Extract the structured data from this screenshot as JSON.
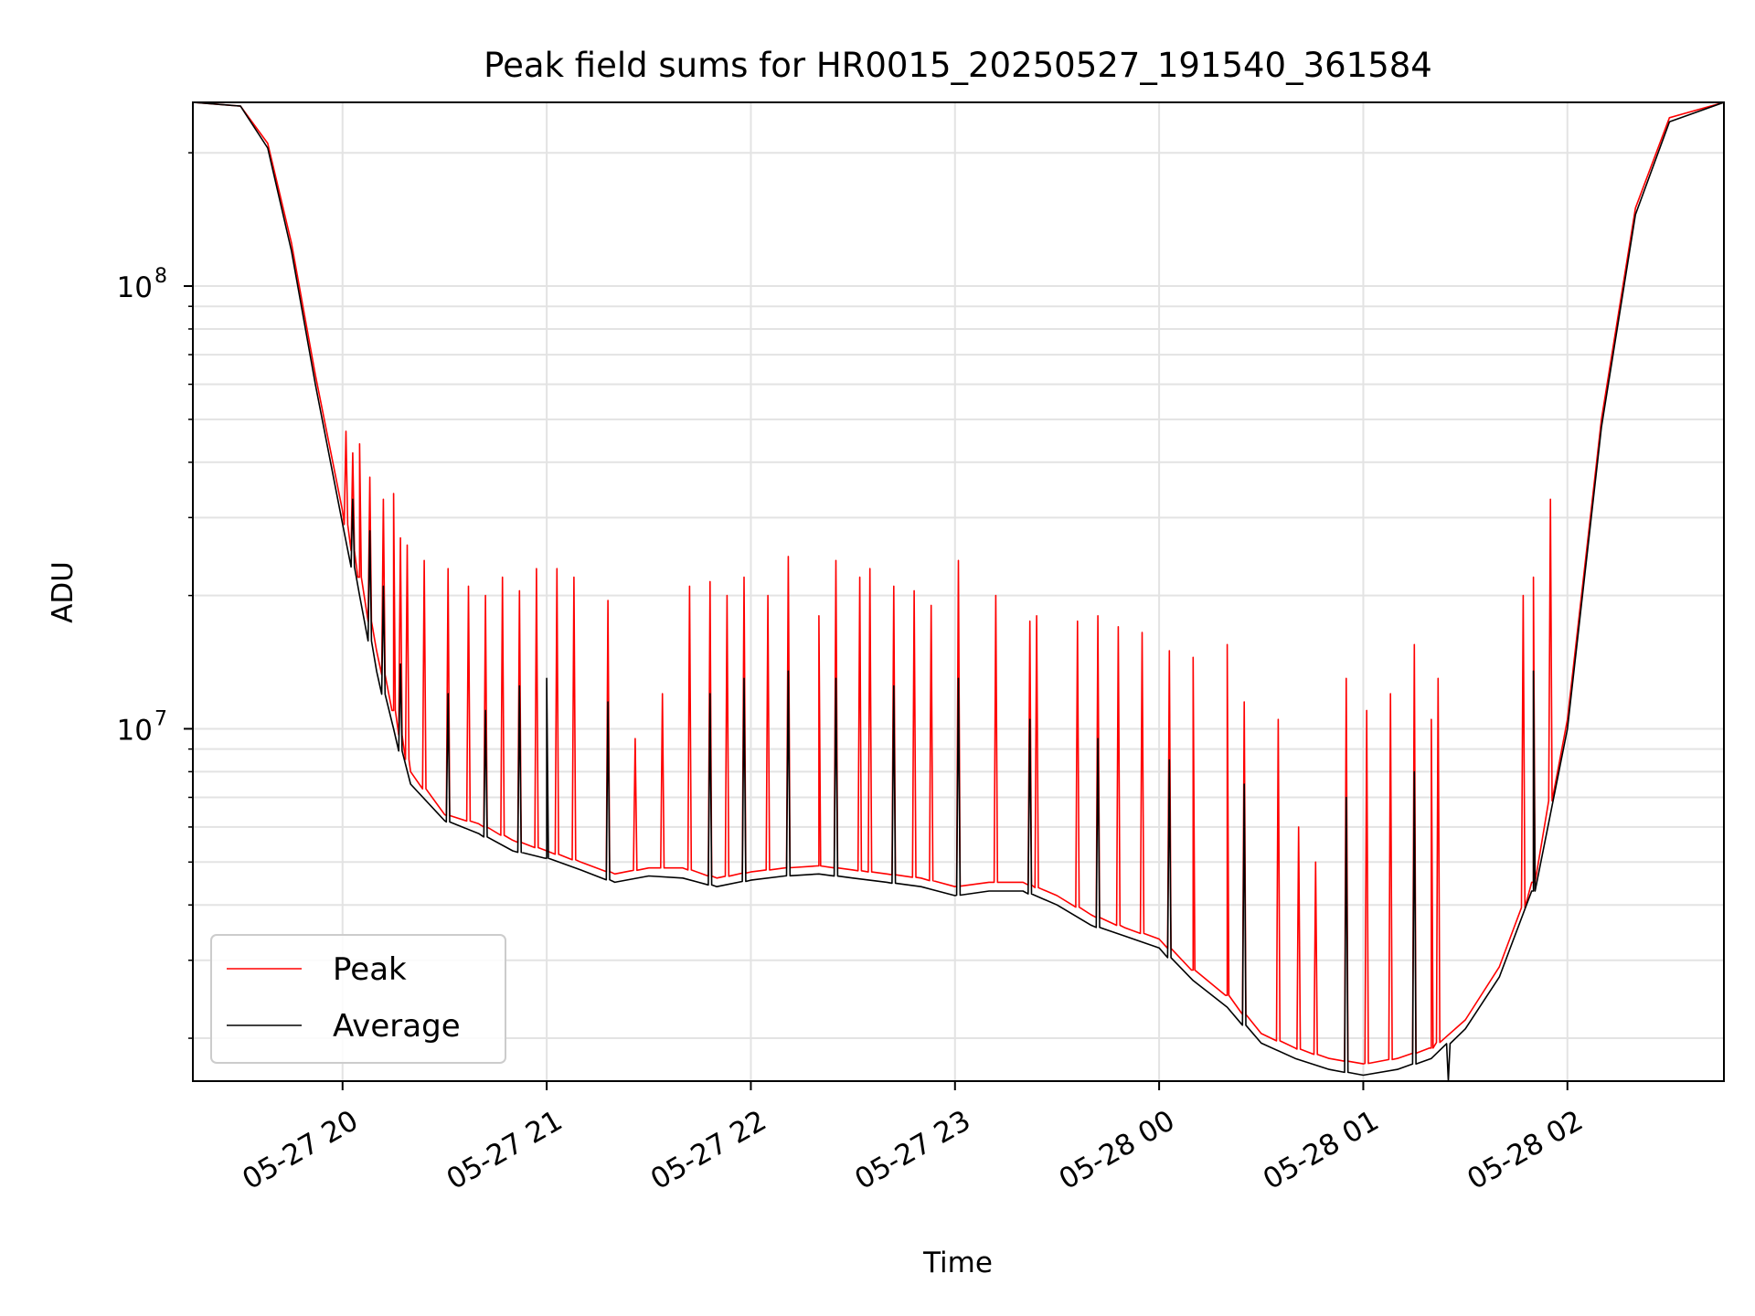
{
  "chart_data": {
    "type": "line",
    "title": "Peak field sums for HR0015_20250527_191540_361584",
    "xlabel": "Time",
    "ylabel": "ADU",
    "yscale": "log",
    "ylim": [
      1600000.0,
      260000000.0
    ],
    "xlim": [
      "2025-05-27 19:16",
      "2025-05-28 02:46"
    ],
    "grid": true,
    "legend_position": "lower-left",
    "x_ticks": [
      {
        "time": "2025-05-27 20:00",
        "label": "05-27 20"
      },
      {
        "time": "2025-05-27 21:00",
        "label": "05-27 21"
      },
      {
        "time": "2025-05-27 22:00",
        "label": "05-27 22"
      },
      {
        "time": "2025-05-27 23:00",
        "label": "05-27 23"
      },
      {
        "time": "2025-05-28 00:00",
        "label": "05-28 00"
      },
      {
        "time": "2025-05-28 01:00",
        "label": "05-28 01"
      },
      {
        "time": "2025-05-28 02:00",
        "label": "05-28 02"
      }
    ],
    "y_ticks": [
      {
        "value": 10000000.0,
        "label": "10",
        "exp": "7"
      },
      {
        "value": 100000000.0,
        "label": "10",
        "exp": "8"
      }
    ],
    "series": [
      {
        "name": "Peak",
        "color": "#ff0000",
        "x": [
          "2025-05-27 19:16",
          "2025-05-27 19:30",
          "2025-05-27 19:38",
          "2025-05-27 19:45",
          "2025-05-27 19:52",
          "2025-05-27 20:00",
          "2025-05-27 20:05",
          "2025-05-27 20:10",
          "2025-05-27 20:15",
          "2025-05-27 20:20",
          "2025-05-27 20:30",
          "2025-05-27 20:40",
          "2025-05-27 20:50",
          "2025-05-27 21:00",
          "2025-05-27 21:10",
          "2025-05-27 21:20",
          "2025-05-27 21:30",
          "2025-05-27 21:40",
          "2025-05-27 21:50",
          "2025-05-27 22:00",
          "2025-05-27 22:10",
          "2025-05-27 22:20",
          "2025-05-27 22:30",
          "2025-05-27 22:40",
          "2025-05-27 22:50",
          "2025-05-27 23:00",
          "2025-05-27 23:10",
          "2025-05-27 23:20",
          "2025-05-27 23:30",
          "2025-05-27 23:40",
          "2025-05-27 23:50",
          "2025-05-28 00:00",
          "2025-05-28 00:10",
          "2025-05-28 00:20",
          "2025-05-28 00:30",
          "2025-05-28 00:40",
          "2025-05-28 00:50",
          "2025-05-28 01:00",
          "2025-05-28 01:10",
          "2025-05-28 01:20",
          "2025-05-28 01:30",
          "2025-05-28 01:40",
          "2025-05-28 01:50",
          "2025-05-28 02:00",
          "2025-05-28 02:10",
          "2025-05-28 02:20",
          "2025-05-28 02:30",
          "2025-05-28 02:46"
        ],
        "y": [
          260000000.0,
          255000000.0,
          210000000.0,
          125000000.0,
          63000000.0,
          31000000.0,
          22000000.0,
          15000000.0,
          11000000.0,
          8000000.0,
          6400000.0,
          6100000.0,
          5600000.0,
          5300000.0,
          5000000.0,
          4700000.0,
          4850000.0,
          4850000.0,
          4600000.0,
          4750000.0,
          4850000.0,
          4900000.0,
          4800000.0,
          4700000.0,
          4600000.0,
          4400000.0,
          4500000.0,
          4500000.0,
          4200000.0,
          3800000.0,
          3550000.0,
          3350000.0,
          2850000.0,
          2500000.0,
          2050000.0,
          1900000.0,
          1800000.0,
          1750000.0,
          1800000.0,
          1900000.0,
          2200000.0,
          2900000.0,
          4500000.0,
          10500000.0,
          50000000.0,
          150000000.0,
          240000000.0,
          260000000.0
        ],
        "spikes": [
          {
            "x": "2025-05-27 20:01",
            "y": 47000000.0
          },
          {
            "x": "2025-05-27 20:03",
            "y": 42000000.0
          },
          {
            "x": "2025-05-27 20:05",
            "y": 44000000.0
          },
          {
            "x": "2025-05-27 20:08",
            "y": 37000000.0
          },
          {
            "x": "2025-05-27 20:12",
            "y": 33000000.0
          },
          {
            "x": "2025-05-27 20:15",
            "y": 34000000.0
          },
          {
            "x": "2025-05-27 20:17",
            "y": 27000000.0
          },
          {
            "x": "2025-05-27 20:19",
            "y": 26000000.0
          },
          {
            "x": "2025-05-27 20:24",
            "y": 24000000.0
          },
          {
            "x": "2025-05-27 20:31",
            "y": 23000000.0
          },
          {
            "x": "2025-05-27 20:37",
            "y": 21000000.0
          },
          {
            "x": "2025-05-27 20:42",
            "y": 20000000.0
          },
          {
            "x": "2025-05-27 20:47",
            "y": 22000000.0
          },
          {
            "x": "2025-05-27 20:52",
            "y": 20500000.0
          },
          {
            "x": "2025-05-27 20:57",
            "y": 23000000.0
          },
          {
            "x": "2025-05-27 21:03",
            "y": 23000000.0
          },
          {
            "x": "2025-05-27 21:08",
            "y": 22000000.0
          },
          {
            "x": "2025-05-27 21:18",
            "y": 19500000.0
          },
          {
            "x": "2025-05-27 21:26",
            "y": 9500000.0
          },
          {
            "x": "2025-05-27 21:34",
            "y": 12000000.0
          },
          {
            "x": "2025-05-27 21:42",
            "y": 21000000.0
          },
          {
            "x": "2025-05-27 21:48",
            "y": 21500000.0
          },
          {
            "x": "2025-05-27 21:53",
            "y": 20000000.0
          },
          {
            "x": "2025-05-27 21:58",
            "y": 22000000.0
          },
          {
            "x": "2025-05-27 22:05",
            "y": 20000000.0
          },
          {
            "x": "2025-05-27 22:11",
            "y": 24500000.0
          },
          {
            "x": "2025-05-27 22:20",
            "y": 18000000.0
          },
          {
            "x": "2025-05-27 22:25",
            "y": 24000000.0
          },
          {
            "x": "2025-05-27 22:32",
            "y": 22000000.0
          },
          {
            "x": "2025-05-27 22:35",
            "y": 23000000.0
          },
          {
            "x": "2025-05-27 22:42",
            "y": 21000000.0
          },
          {
            "x": "2025-05-27 22:48",
            "y": 20500000.0
          },
          {
            "x": "2025-05-27 22:53",
            "y": 19000000.0
          },
          {
            "x": "2025-05-27 23:01",
            "y": 24000000.0
          },
          {
            "x": "2025-05-27 23:12",
            "y": 20000000.0
          },
          {
            "x": "2025-05-27 23:22",
            "y": 17500000.0
          },
          {
            "x": "2025-05-27 23:24",
            "y": 18000000.0
          },
          {
            "x": "2025-05-27 23:36",
            "y": 17500000.0
          },
          {
            "x": "2025-05-27 23:42",
            "y": 18000000.0
          },
          {
            "x": "2025-05-27 23:48",
            "y": 17000000.0
          },
          {
            "x": "2025-05-27 23:55",
            "y": 16500000.0
          },
          {
            "x": "2025-05-28 00:03",
            "y": 15000000.0
          },
          {
            "x": "2025-05-28 00:10",
            "y": 14500000.0
          },
          {
            "x": "2025-05-28 00:20",
            "y": 15500000.0
          },
          {
            "x": "2025-05-28 00:25",
            "y": 11500000.0
          },
          {
            "x": "2025-05-28 00:35",
            "y": 10500000.0
          },
          {
            "x": "2025-05-28 00:41",
            "y": 6000000.0
          },
          {
            "x": "2025-05-28 00:46",
            "y": 5000000.0
          },
          {
            "x": "2025-05-28 00:55",
            "y": 13000000.0
          },
          {
            "x": "2025-05-28 01:01",
            "y": 11000000.0
          },
          {
            "x": "2025-05-28 01:08",
            "y": 12000000.0
          },
          {
            "x": "2025-05-28 01:15",
            "y": 15500000.0
          },
          {
            "x": "2025-05-28 01:20",
            "y": 10500000.0
          },
          {
            "x": "2025-05-28 01:22",
            "y": 13000000.0
          },
          {
            "x": "2025-05-28 01:47",
            "y": 20000000.0
          },
          {
            "x": "2025-05-28 01:50",
            "y": 22000000.0
          },
          {
            "x": "2025-05-28 01:55",
            "y": 33000000.0
          }
        ]
      },
      {
        "name": "Average",
        "color": "#000000",
        "x": [
          "2025-05-27 19:16",
          "2025-05-27 19:30",
          "2025-05-27 19:38",
          "2025-05-27 19:45",
          "2025-05-27 19:52",
          "2025-05-27 20:00",
          "2025-05-27 20:05",
          "2025-05-27 20:10",
          "2025-05-27 20:15",
          "2025-05-27 20:20",
          "2025-05-27 20:30",
          "2025-05-27 20:40",
          "2025-05-27 20:50",
          "2025-05-27 21:00",
          "2025-05-27 21:10",
          "2025-05-27 21:20",
          "2025-05-27 21:30",
          "2025-05-27 21:40",
          "2025-05-27 21:50",
          "2025-05-27 22:00",
          "2025-05-27 22:10",
          "2025-05-27 22:20",
          "2025-05-27 22:30",
          "2025-05-27 22:40",
          "2025-05-27 22:50",
          "2025-05-27 23:00",
          "2025-05-27 23:10",
          "2025-05-27 23:20",
          "2025-05-27 23:30",
          "2025-05-27 23:40",
          "2025-05-27 23:50",
          "2025-05-28 00:00",
          "2025-05-28 00:10",
          "2025-05-28 00:20",
          "2025-05-28 00:30",
          "2025-05-28 00:40",
          "2025-05-28 00:50",
          "2025-05-28 01:00",
          "2025-05-28 01:10",
          "2025-05-28 01:20",
          "2025-05-28 01:30",
          "2025-05-28 01:40",
          "2025-05-28 01:50",
          "2025-05-28 02:00",
          "2025-05-28 02:10",
          "2025-05-28 02:20",
          "2025-05-28 02:30",
          "2025-05-28 02:46"
        ],
        "y": [
          260000000.0,
          255000000.0,
          205000000.0,
          120000000.0,
          60000000.0,
          29000000.0,
          20000000.0,
          13500000.0,
          10000000.0,
          7500000.0,
          6200000.0,
          5800000.0,
          5300000.0,
          5100000.0,
          4800000.0,
          4500000.0,
          4650000.0,
          4600000.0,
          4400000.0,
          4550000.0,
          4650000.0,
          4700000.0,
          4600000.0,
          4500000.0,
          4400000.0,
          4200000.0,
          4300000.0,
          4300000.0,
          4000000.0,
          3600000.0,
          3400000.0,
          3200000.0,
          2700000.0,
          2350000.0,
          1950000.0,
          1800000.0,
          1700000.0,
          1650000.0,
          1700000.0,
          1800000.0,
          2100000.0,
          2750000.0,
          4300000.0,
          10000000.0,
          48000000.0,
          145000000.0,
          235000000.0,
          260000000.0
        ],
        "spikes": [
          {
            "x": "2025-05-27 20:03",
            "y": 33000000.0
          },
          {
            "x": "2025-05-27 20:08",
            "y": 28000000.0
          },
          {
            "x": "2025-05-27 20:12",
            "y": 21000000.0
          },
          {
            "x": "2025-05-27 20:17",
            "y": 14000000.0
          },
          {
            "x": "2025-05-27 20:31",
            "y": 12000000.0
          },
          {
            "x": "2025-05-27 20:42",
            "y": 11000000.0
          },
          {
            "x": "2025-05-27 20:52",
            "y": 12500000.0
          },
          {
            "x": "2025-05-27 21:00",
            "y": 13000000.0
          },
          {
            "x": "2025-05-27 21:18",
            "y": 11500000.0
          },
          {
            "x": "2025-05-27 21:48",
            "y": 12000000.0
          },
          {
            "x": "2025-05-27 21:58",
            "y": 13000000.0
          },
          {
            "x": "2025-05-27 22:11",
            "y": 13500000.0
          },
          {
            "x": "2025-05-27 22:25",
            "y": 13000000.0
          },
          {
            "x": "2025-05-27 22:42",
            "y": 12500000.0
          },
          {
            "x": "2025-05-27 23:01",
            "y": 13000000.0
          },
          {
            "x": "2025-05-27 23:22",
            "y": 10500000.0
          },
          {
            "x": "2025-05-27 23:42",
            "y": 9500000.0
          },
          {
            "x": "2025-05-28 00:03",
            "y": 8500000.0
          },
          {
            "x": "2025-05-28 00:25",
            "y": 7500000.0
          },
          {
            "x": "2025-05-28 00:55",
            "y": 7000000.0
          },
          {
            "x": "2025-05-28 01:15",
            "y": 8000000.0
          },
          {
            "x": "2025-05-28 01:25",
            "y": 1600000.0
          },
          {
            "x": "2025-05-28 01:50",
            "y": 13500000.0
          }
        ]
      }
    ]
  }
}
